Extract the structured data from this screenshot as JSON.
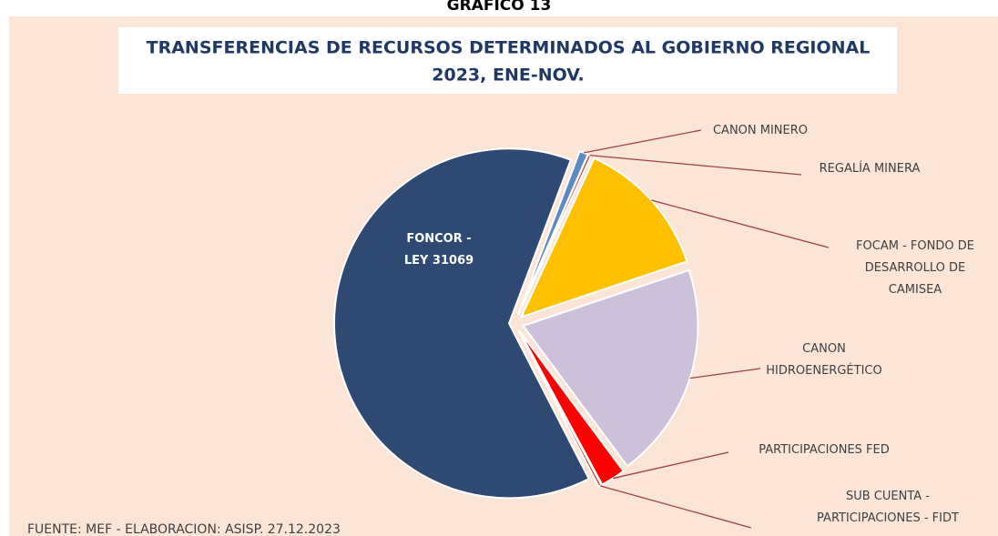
{
  "chart_data": {
    "type": "pie",
    "heading": "GRAFICO 13",
    "title": [
      "TRANSFERENCIAS DE RECURSOS DETERMINADOS AL GOBIERNO REGIONAL",
      "2023, ENE-NOV."
    ],
    "source": "FUENTE:  MEF - ELABORACION:  ASISP. 27.12.2023",
    "categories": [
      "CANON MINERO",
      "REGALÍA MINERA",
      "FOCAM - FONDO DE\nDESARROLLO DE\nCAMISEA",
      "CANON\nHIDROENERGÉTICO",
      "PARTICIPACIONES FED",
      "SUB CUENTA -\nPARTICIPACIONES - FIDT",
      "FONCOR -\nLEY 31069"
    ],
    "values": [
      0.8,
      0.3,
      13,
      20,
      2.3,
      0.3,
      63.3
    ],
    "colors": [
      "#5b8ac4",
      "#c0504d",
      "#ffc000",
      "#ccc0da",
      "#ff0000",
      "#c0504d",
      "#2e4a72"
    ]
  }
}
